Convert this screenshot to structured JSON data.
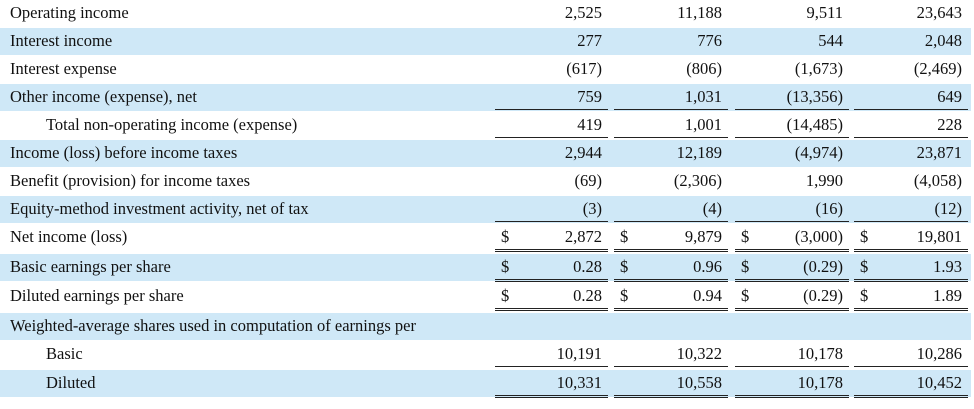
{
  "rows": [
    {
      "label": "Operating income",
      "v": [
        "2,525",
        "11,188",
        "9,511",
        "23,643"
      ]
    },
    {
      "label": "Interest income",
      "v": [
        "277",
        "776",
        "544",
        "2,048"
      ]
    },
    {
      "label": "Interest expense",
      "v": [
        "(617)",
        "(806)",
        "(1,673)",
        "(2,469)"
      ]
    },
    {
      "label": "Other income (expense), net",
      "v": [
        "759",
        "1,031",
        "(13,356)",
        "649"
      ]
    },
    {
      "label": "Total non-operating income (expense)",
      "v": [
        "419",
        "1,001",
        "(14,485)",
        "228"
      ]
    },
    {
      "label": "Income (loss) before income taxes",
      "v": [
        "2,944",
        "12,189",
        "(4,974)",
        "23,871"
      ]
    },
    {
      "label": "Benefit (provision) for income taxes",
      "v": [
        "(69)",
        "(2,306)",
        "1,990",
        "(4,058)"
      ]
    },
    {
      "label": "Equity-method investment activity, net of tax",
      "v": [
        "(3)",
        "(4)",
        "(16)",
        "(12)"
      ]
    },
    {
      "label": "Net income (loss)",
      "v": [
        "2,872",
        "9,879",
        "(3,000)",
        "19,801"
      ]
    },
    {
      "label": "Basic earnings per share",
      "v": [
        "0.28",
        "0.96",
        "(0.29)",
        "1.93"
      ]
    },
    {
      "label": "Diluted earnings per share",
      "v": [
        "0.28",
        "0.94",
        "(0.29)",
        "1.89"
      ]
    },
    {
      "label": "Weighted-average shares used in computation of earnings per",
      "v": [
        "",
        "",
        "",
        ""
      ]
    },
    {
      "label": "Basic",
      "v": [
        "10,191",
        "10,322",
        "10,178",
        "10,286"
      ]
    },
    {
      "label": "Diluted",
      "v": [
        "10,331",
        "10,558",
        "10,178",
        "10,452"
      ]
    }
  ],
  "currency_symbol": "$",
  "colors": {
    "row_shade": "#cfe8f7"
  }
}
